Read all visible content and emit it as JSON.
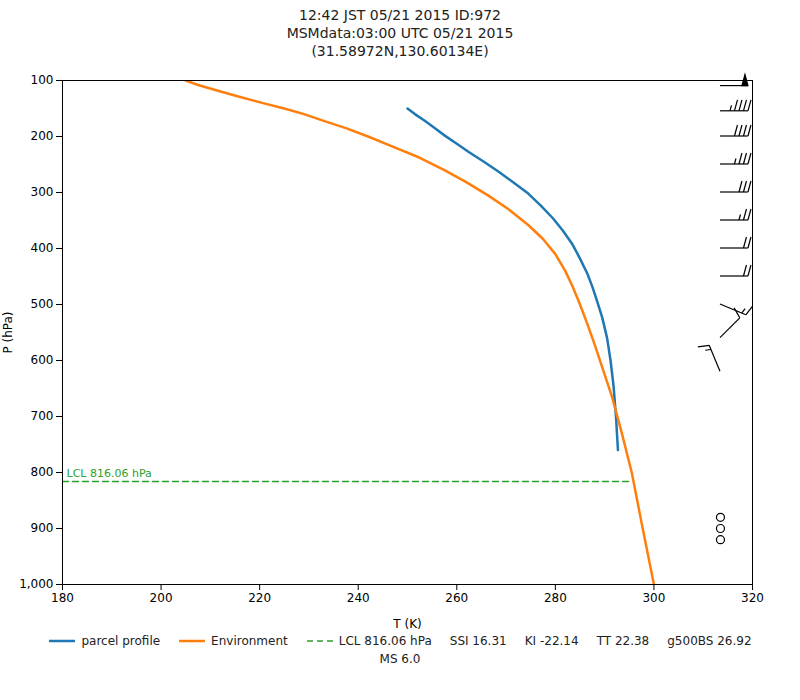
{
  "chart_data": {
    "type": "line",
    "title": "12:42 JST 05/21 2015  ID:972\nMSMdata:03:00 UTC 05/21 2015\n(31.58972N,130.60134E)",
    "xlabel": "T (K)",
    "ylabel": "P (hPa)",
    "xlim": [
      180,
      320
    ],
    "ylim": [
      1000,
      100
    ],
    "xticks": [
      180,
      200,
      220,
      240,
      260,
      280,
      300,
      320
    ],
    "yticks": [
      100,
      200,
      300,
      400,
      500,
      600,
      700,
      800,
      900,
      1000
    ],
    "grid": false,
    "legend": "bottom",
    "series": [
      {
        "name": "parcel profile",
        "color": "#1f77b4",
        "x": [
          250.0,
          251.5,
          253.5,
          255.5,
          257.5,
          260.0,
          262.5,
          265.5,
          268.5,
          271.5,
          274.5,
          277.0,
          279.5,
          281.5,
          283.5,
          285.0,
          286.5,
          287.5,
          288.5,
          289.5,
          290.5,
          291.2,
          291.8,
          292.3,
          292.7
        ],
        "values": [
          150,
          160,
          172,
          185,
          198,
          213,
          228,
          245,
          263,
          282,
          302,
          323,
          346,
          368,
          393,
          418,
          445,
          468,
          495,
          523,
          560,
          600,
          645,
          700,
          760
        ]
      },
      {
        "name": "Environment",
        "color": "#ff7f0e",
        "x": [
          205.0,
          207.5,
          211.0,
          215.5,
          220.5,
          225.0,
          229.0,
          233.0,
          237.5,
          242.0,
          247.0,
          252.5,
          257.5,
          262.0,
          266.5,
          270.5,
          274.5,
          277.5,
          280.0,
          282.0,
          283.5,
          285.0,
          286.5,
          288.0,
          289.5,
          291.5,
          293.5,
          295.5,
          297.5,
          300.0
        ],
        "values": [
          100,
          108,
          117,
          128,
          140,
          150,
          160,
          172,
          185,
          200,
          218,
          238,
          260,
          282,
          306,
          330,
          358,
          383,
          410,
          440,
          468,
          500,
          535,
          572,
          612,
          665,
          730,
          800,
          890,
          1000
        ]
      }
    ],
    "lcl": {
      "name": "LCL 816.06 hPa",
      "value": 816.06,
      "x": [
        180,
        295
      ],
      "color": "#2ca02c",
      "line_style": "dashed"
    },
    "indices": [
      "SSI 16.31",
      "KI -22.14",
      "TT 22.38",
      "g500BS 26.92",
      "MS 6.0"
    ],
    "wind_barbs": {
      "x": 313.5,
      "p": [
        110,
        155,
        200,
        250,
        300,
        350,
        400,
        450,
        500,
        560,
        620
      ],
      "u": [
        -50,
        -45,
        -40,
        -35,
        -30,
        -25,
        -22,
        -18,
        -12,
        -8,
        5
      ],
      "v": [
        0,
        0,
        0,
        0,
        0,
        0,
        0,
        0,
        5,
        -8,
        -12
      ]
    },
    "calm_winds": {
      "x": 313.5,
      "p": [
        880,
        900,
        920
      ]
    }
  }
}
